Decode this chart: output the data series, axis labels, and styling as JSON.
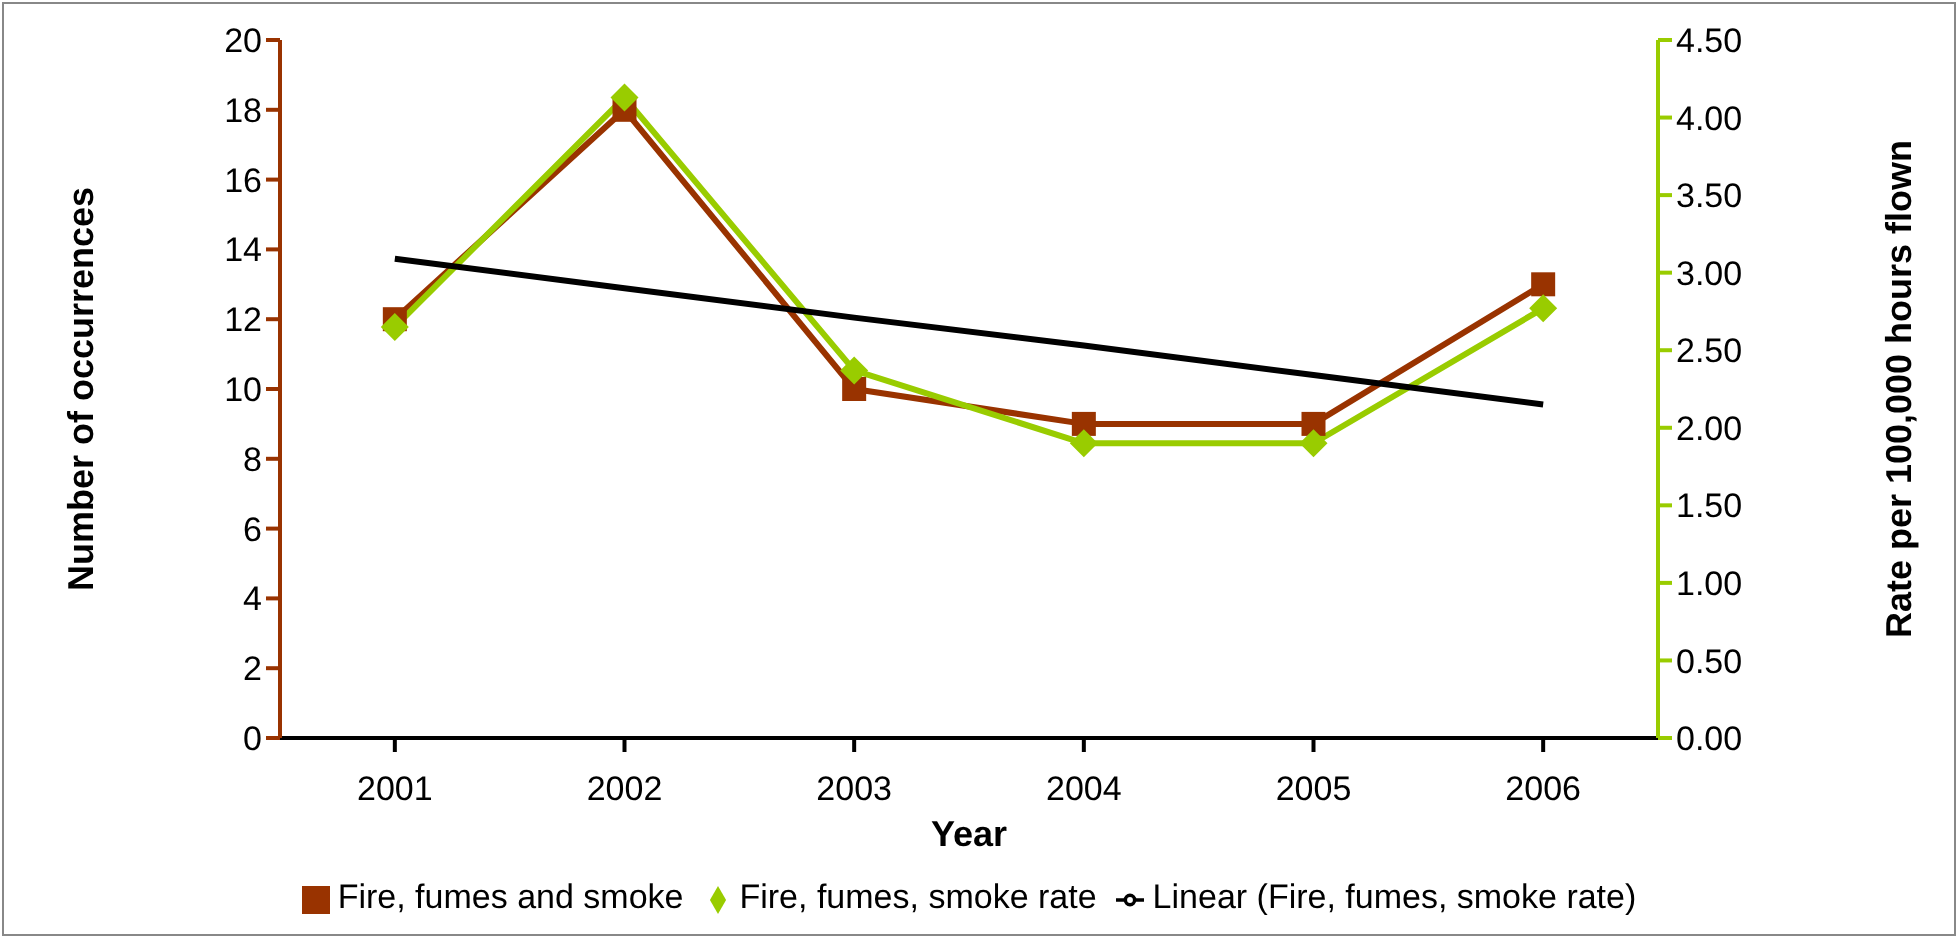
{
  "chart_data": {
    "type": "line",
    "xlabel": "Year",
    "ylabel": "Number of occurrences",
    "y2label": "Rate per 100,000 hours flown",
    "categories": [
      "2001",
      "2002",
      "2003",
      "2004",
      "2005",
      "2006"
    ],
    "series": [
      {
        "name": "Fire, fumes and smoke",
        "color": "#993300",
        "marker": "square",
        "values": [
          12,
          18,
          10,
          9,
          9,
          13
        ]
      },
      {
        "name": "Fire, fumes, smoke rate",
        "color": "#99cc00",
        "marker": "diamond",
        "axis": "y2",
        "values": [
          2.65,
          4.13,
          2.37,
          1.9,
          1.9,
          2.77
        ]
      },
      {
        "name": "Linear (Fire, fumes, smoke rate)",
        "color": "#000000",
        "marker": "none",
        "axis": "y2",
        "values": [
          3.09,
          2.9,
          2.71,
          2.53,
          2.34,
          2.15
        ]
      }
    ],
    "ylim": [
      0,
      20
    ],
    "yticks": [
      0,
      2,
      4,
      6,
      8,
      10,
      12,
      14,
      16,
      18,
      20
    ],
    "y2lim": [
      0,
      4.5
    ],
    "y2ticks": [
      {
        "value": 0,
        "label": "0.00"
      },
      {
        "value": 0.5,
        "label": "0.50"
      },
      {
        "value": 1,
        "label": "1.00"
      },
      {
        "value": 1.5,
        "label": "1.50"
      },
      {
        "value": 2,
        "label": "2.00"
      },
      {
        "value": 2.5,
        "label": "2.50"
      },
      {
        "value": 3,
        "label": "3.00"
      },
      {
        "value": 3.5,
        "label": "3.50"
      },
      {
        "value": 4,
        "label": "4.00"
      },
      {
        "value": 4.5,
        "label": "4.50"
      }
    ],
    "grid": false,
    "legend": "bottom",
    "line_style": "solid"
  }
}
